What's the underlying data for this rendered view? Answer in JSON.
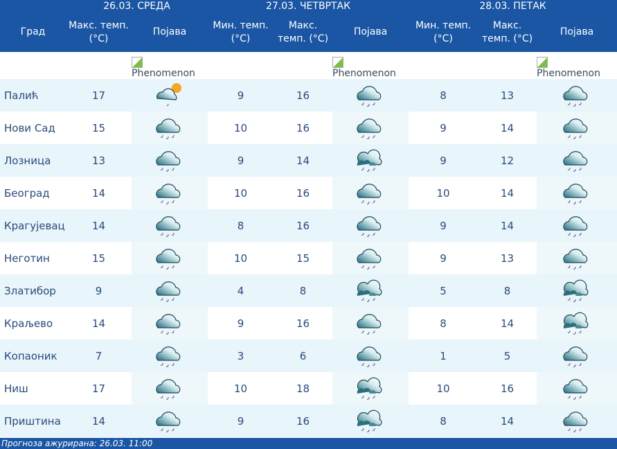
{
  "days": [
    "26.03. СРЕДА",
    "27.03. ЧЕТВРТАК",
    "28.03. ПЕТАК"
  ],
  "headers": {
    "city": "Град",
    "max": "Макс. темп. (°C)",
    "min": "Мин. темп. (°C)",
    "phen": "Појава"
  },
  "phenomenon_alt": "Phenomenon",
  "rows": [
    {
      "city": "Палић",
      "d1max": "17",
      "d1icon": "partly-cloudy-rain",
      "d2min": "9",
      "d2max": "16",
      "d2icon": "rain",
      "d3min": "8",
      "d3max": "13",
      "d3icon": "rain"
    },
    {
      "city": "Нови Сад",
      "d1max": "15",
      "d1icon": "rain",
      "d2min": "10",
      "d2max": "16",
      "d2icon": "rain",
      "d3min": "9",
      "d3max": "14",
      "d3icon": "rain"
    },
    {
      "city": "Лозница",
      "d1max": "13",
      "d1icon": "rain",
      "d2min": "9",
      "d2max": "14",
      "d2icon": "clouds-rain",
      "d3min": "9",
      "d3max": "12",
      "d3icon": "rain"
    },
    {
      "city": "Београд",
      "d1max": "14",
      "d1icon": "rain",
      "d2min": "10",
      "d2max": "16",
      "d2icon": "rain",
      "d3min": "10",
      "d3max": "14",
      "d3icon": "rain"
    },
    {
      "city": "Крагујевац",
      "d1max": "14",
      "d1icon": "rain",
      "d2min": "8",
      "d2max": "16",
      "d2icon": "rain",
      "d3min": "9",
      "d3max": "14",
      "d3icon": "rain"
    },
    {
      "city": "Неготин",
      "d1max": "15",
      "d1icon": "rain",
      "d2min": "10",
      "d2max": "15",
      "d2icon": "rain",
      "d3min": "9",
      "d3max": "13",
      "d3icon": "rain"
    },
    {
      "city": "Златибор",
      "d1max": "9",
      "d1icon": "rain",
      "d2min": "4",
      "d2max": "8",
      "d2icon": "clouds-rain",
      "d3min": "5",
      "d3max": "8",
      "d3icon": "clouds-rain"
    },
    {
      "city": "Краљево",
      "d1max": "14",
      "d1icon": "rain",
      "d2min": "9",
      "d2max": "16",
      "d2icon": "rain",
      "d3min": "8",
      "d3max": "14",
      "d3icon": "clouds-rain"
    },
    {
      "city": "Копаоник",
      "d1max": "7",
      "d1icon": "rain",
      "d2min": "3",
      "d2max": "6",
      "d2icon": "rain",
      "d3min": "1",
      "d3max": "5",
      "d3icon": "rain"
    },
    {
      "city": "Ниш",
      "d1max": "17",
      "d1icon": "rain",
      "d2min": "10",
      "d2max": "18",
      "d2icon": "clouds-rain",
      "d3min": "10",
      "d3max": "16",
      "d3icon": "rain"
    },
    {
      "city": "Приштина",
      "d1max": "14",
      "d1icon": "rain",
      "d2min": "9",
      "d2max": "16",
      "d2icon": "clouds-rain",
      "d3min": "8",
      "d3max": "14",
      "d3icon": "rain"
    }
  ],
  "footer": "Прогноза ажурирана:  26.03. 11:00",
  "colors": {
    "header": "#1a56a4",
    "row_alt": "#e8f5fb",
    "text": "#2a4a7a"
  }
}
